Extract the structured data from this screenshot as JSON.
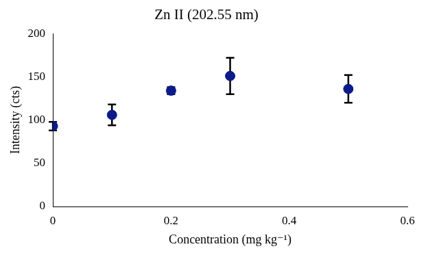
{
  "chart_data": {
    "type": "scatter",
    "title": "Zn II (202.55 nm)",
    "x_label": "Concentration (mg kg⁻¹)",
    "y_label": "Intensity (cts)",
    "x": [
      0,
      0.1,
      0.2,
      0.3,
      0.5
    ],
    "values": [
      93,
      106,
      134,
      151,
      136
    ],
    "errors": [
      5,
      12,
      4,
      21,
      16
    ],
    "color": "#0d1a8c",
    "marker": "circle",
    "xlim": [
      0,
      0.6
    ],
    "xticks": [
      0,
      0.2,
      0.4,
      0.6
    ],
    "ylim": [
      0,
      200
    ],
    "yticks": [
      0,
      50,
      100,
      150,
      200
    ],
    "grid": false
  }
}
